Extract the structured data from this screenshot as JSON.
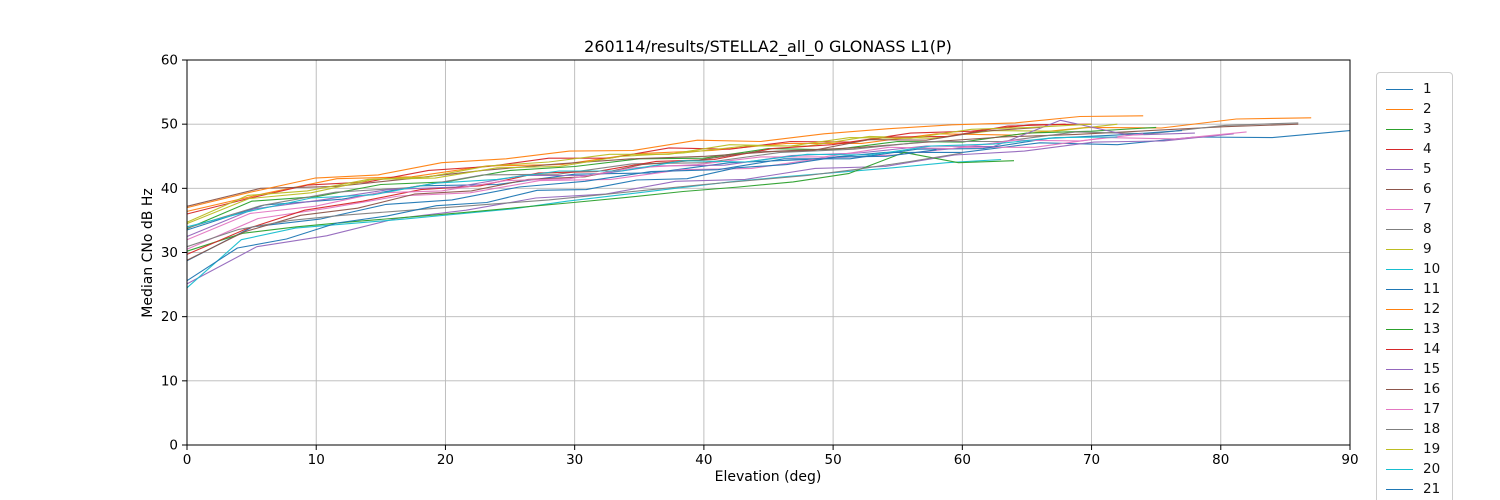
{
  "chart_data": {
    "type": "line",
    "title": "260114/results/STELLA2_all_0 GLONASS L1(P)",
    "xlabel": "Elevation (deg)",
    "ylabel": "Median CNo dB Hz",
    "xlim": [
      0,
      90
    ],
    "ylim": [
      0,
      60
    ],
    "x_ticks": [
      0,
      10,
      20,
      30,
      40,
      50,
      60,
      70,
      80,
      90
    ],
    "y_ticks": [
      0,
      10,
      20,
      30,
      40,
      50,
      60
    ],
    "grid": true,
    "legend_position": "outside-right",
    "legend_note": "entries 1-21, entry 21 clipped at figure bottom",
    "series": [
      {
        "name": "1",
        "color": "#1f77b4",
        "x": [
          0,
          6,
          12,
          18,
          24,
          30,
          36,
          42,
          48,
          54,
          60,
          66,
          72,
          78,
          84,
          90
        ],
        "y": [
          33.5,
          37.4,
          38.3,
          40.4,
          40.6,
          42.2,
          42.4,
          44.0,
          44.5,
          45.6,
          45.6,
          47.1,
          46.8,
          48.0,
          47.9,
          49.0
        ]
      },
      {
        "name": "2",
        "color": "#ff7f0e",
        "x": [
          0,
          5.8,
          11.6,
          17.4,
          23.2,
          29,
          34.8,
          40.6,
          46.4,
          52.2,
          58,
          63.8,
          69.6,
          75.4,
          81.2,
          87
        ],
        "y": [
          36.4,
          39.1,
          41.5,
          41.8,
          43.5,
          43.7,
          45.4,
          45.9,
          47.0,
          47.0,
          48.5,
          48.3,
          49.5,
          49.4,
          50.8,
          51.0
        ]
      },
      {
        "name": "3",
        "color": "#2ca02c",
        "x": [
          0,
          5,
          10,
          15,
          20,
          25,
          30,
          35,
          40,
          45,
          50,
          55,
          60,
          65,
          70,
          75
        ],
        "y": [
          33.7,
          38.0,
          38.7,
          40.6,
          41.0,
          42.8,
          43.4,
          44.6,
          44.7,
          46.2,
          46.0,
          47.3,
          47.2,
          48.6,
          48.9,
          49.5
        ]
      },
      {
        "name": "4",
        "color": "#d62728",
        "x": [
          0,
          4.7,
          9.3,
          14,
          18.7,
          23.3,
          28,
          32.7,
          37.3,
          42,
          46.7,
          51.3,
          56,
          60.7,
          65.3,
          70
        ],
        "y": [
          36.0,
          38.4,
          40.5,
          41.0,
          42.8,
          43.4,
          44.7,
          44.7,
          46.3,
          46.1,
          47.3,
          47.2,
          48.6,
          48.9,
          49.9,
          50.0
        ]
      },
      {
        "name": "5",
        "color": "#9467bd",
        "x": [
          0,
          5.4,
          10.8,
          16.2,
          21.6,
          27,
          32.4,
          37.8,
          43.2,
          48.6,
          54,
          59.4,
          64.8,
          70.2,
          75.6,
          81
        ],
        "y": [
          25.1,
          30.9,
          32.6,
          35.3,
          36.6,
          38.5,
          39.1,
          41.1,
          41.4,
          43.1,
          43.4,
          45.2,
          45.8,
          47.2,
          47.4,
          48.5
        ]
      },
      {
        "name": "6",
        "color": "#8c564b",
        "x": [
          0,
          5.7,
          11.5,
          17.2,
          22.9,
          28.7,
          34.4,
          40.1,
          45.9,
          51.6,
          57.3,
          63.1,
          68.8,
          74.5,
          80.3,
          86
        ],
        "y": [
          37.2,
          40.0,
          40.3,
          41.5,
          42.8,
          43.8,
          44.6,
          45.0,
          45.8,
          46.3,
          47.2,
          48.0,
          48.4,
          49.0,
          49.6,
          50.0
        ]
      },
      {
        "name": "7",
        "color": "#e377c2",
        "x": [
          0,
          5.5,
          10.9,
          16.4,
          21.9,
          27.3,
          32.8,
          38.3,
          43.7,
          49.2,
          54.7,
          60.1,
          65.6,
          71.1,
          76.5,
          82
        ],
        "y": [
          30.5,
          35.3,
          36.9,
          38.8,
          39.3,
          41.2,
          41.4,
          42.9,
          43.1,
          44.7,
          45.2,
          46.4,
          46.4,
          47.9,
          47.7,
          48.8
        ]
      },
      {
        "name": "8",
        "color": "#7f7f7f",
        "x": [
          0,
          5.7,
          11.5,
          17.2,
          22.9,
          28.7,
          34.4,
          40.1,
          45.9,
          51.6,
          57.3,
          63.1,
          68.8,
          74.5,
          80.3,
          86
        ],
        "y": [
          33.8,
          37.3,
          39.4,
          40.1,
          42.1,
          42.2,
          43.8,
          44.0,
          45.6,
          46.1,
          47.3,
          47.3,
          48.8,
          48.5,
          49.8,
          50.2
        ]
      },
      {
        "name": "9",
        "color": "#bcbd22",
        "x": [
          0,
          4.8,
          9.6,
          14.4,
          19.2,
          24,
          28.8,
          33.6,
          38.4,
          43.2,
          48,
          52.8,
          57.6,
          62.4,
          67.2,
          72
        ],
        "y": [
          34.5,
          38.4,
          39.3,
          41.4,
          41.6,
          43.2,
          43.4,
          45.0,
          45.5,
          46.6,
          46.6,
          48.1,
          47.8,
          49.0,
          48.9,
          50.0
        ]
      },
      {
        "name": "10",
        "color": "#17becf",
        "x": [
          0,
          4.2,
          8.4,
          12.6,
          16.8,
          21,
          25.2,
          29.4,
          33.6,
          37.8,
          42,
          46.2,
          50.4,
          54.6,
          58.8,
          63
        ],
        "y": [
          24.5,
          32.0,
          33.8,
          34.5,
          35.2,
          36.0,
          36.8,
          38.0,
          39.0,
          40.0,
          41.0,
          41.8,
          42.5,
          43.2,
          44.0,
          44.5
        ]
      },
      {
        "name": "11",
        "color": "#1f77b4",
        "x": [
          0,
          5.1,
          10.3,
          15.4,
          20.5,
          25.7,
          30.8,
          35.9,
          41.1,
          46.2,
          51.3,
          56.5,
          61.6,
          66.7,
          71.9,
          77
        ],
        "y": [
          28.7,
          34.0,
          35.2,
          37.5,
          38.2,
          40.2,
          41.1,
          42.6,
          42.9,
          44.6,
          44.6,
          46.1,
          46.2,
          47.8,
          48.3,
          49.0
        ]
      },
      {
        "name": "12",
        "color": "#ff7f0e",
        "x": [
          0,
          4.9,
          9.9,
          14.8,
          19.7,
          24.7,
          29.6,
          34.5,
          39.5,
          44.4,
          49.3,
          54.3,
          59.2,
          64.1,
          69.1,
          74
        ],
        "y": [
          37.0,
          39.4,
          41.6,
          42.1,
          44.0,
          44.6,
          45.8,
          45.9,
          47.5,
          47.3,
          48.5,
          49.3,
          49.9,
          50.2,
          51.2,
          51.3
        ]
      },
      {
        "name": "13",
        "color": "#2ca02c",
        "x": [
          0,
          4.3,
          8.5,
          12.8,
          17.1,
          21.3,
          25.6,
          29.9,
          34.1,
          38.4,
          42.7,
          46.9,
          51.2,
          55.5,
          59.7,
          64
        ],
        "y": [
          30.2,
          33.0,
          34.0,
          34.8,
          35.5,
          36.2,
          37.0,
          37.8,
          38.6,
          39.5,
          40.2,
          41.0,
          42.3,
          45.6,
          44.0,
          44.3
        ]
      },
      {
        "name": "14",
        "color": "#d62728",
        "x": [
          0,
          4.5,
          9.1,
          13.6,
          18.1,
          22.7,
          27.2,
          31.7,
          36.3,
          40.8,
          45.3,
          49.9,
          54.4,
          58.9,
          63.5,
          68
        ],
        "y": [
          29.7,
          33.6,
          36.6,
          38.0,
          39.8,
          40.4,
          42.4,
          42.6,
          44.2,
          44.5,
          46.2,
          46.8,
          48.0,
          48.1,
          49.7,
          50.0
        ]
      },
      {
        "name": "15",
        "color": "#9467bd",
        "x": [
          0,
          5.2,
          10.4,
          15.6,
          20.8,
          26,
          31.2,
          36.4,
          41.6,
          46.8,
          52,
          57.2,
          62.4,
          67.6,
          72.8,
          78
        ],
        "y": [
          32.5,
          36.8,
          38.2,
          39.8,
          40.2,
          42.0,
          42.0,
          43.5,
          43.6,
          45.1,
          45.5,
          46.6,
          46.5,
          50.6,
          48.3,
          48.6
        ]
      },
      {
        "name": "16",
        "color": "#8c564b",
        "x": [
          0,
          4.4,
          8.8,
          13.2,
          17.6,
          22,
          26.4,
          30.8,
          35.2,
          39.6,
          44,
          48.4,
          52.8,
          57.2,
          61.6,
          66
        ],
        "y": [
          28.8,
          33.2,
          35.8,
          36.9,
          39.1,
          39.6,
          41.4,
          41.8,
          43.7,
          44.4,
          45.7,
          45.9,
          47.6,
          47.5,
          48.9,
          49.5
        ]
      },
      {
        "name": "17",
        "color": "#e377c2",
        "x": [
          0,
          4.9,
          9.9,
          14.8,
          19.7,
          24.7,
          29.6,
          34.5,
          39.5,
          44.4,
          49.3,
          54.3,
          59.2,
          64.1,
          69.1,
          74
        ],
        "y": [
          32.0,
          36.1,
          37.2,
          39.3,
          39.6,
          41.2,
          41.5,
          43.2,
          43.7,
          44.9,
          44.9,
          46.4,
          46.2,
          47.5,
          47.4,
          48.5
        ]
      },
      {
        "name": "18",
        "color": "#7f7f7f",
        "x": [
          0,
          4,
          8,
          12,
          16,
          20,
          24,
          28,
          32,
          36,
          40,
          44,
          48,
          52,
          56,
          60
        ],
        "y": [
          30.9,
          33.6,
          35.0,
          35.8,
          36.4,
          37.0,
          37.6,
          38.2,
          39.0,
          39.8,
          40.6,
          41.3,
          42.0,
          43.0,
          44.2,
          45.5
        ]
      },
      {
        "name": "19",
        "color": "#bcbd22",
        "x": [
          0,
          4.7,
          9.3,
          14,
          18.7,
          23.3,
          28,
          32.7,
          37.3,
          42,
          46.7,
          51.3,
          56,
          60.7,
          65.3,
          70
        ],
        "y": [
          34.7,
          38.9,
          39.6,
          41.4,
          41.8,
          43.5,
          44.1,
          45.3,
          45.3,
          46.8,
          46.6,
          47.9,
          47.8,
          49.2,
          49.5,
          50.0
        ]
      },
      {
        "name": "20",
        "color": "#17becf",
        "x": [
          0,
          4.8,
          9.6,
          14.4,
          19.2,
          24,
          28.8,
          33.6,
          38.4,
          43.2,
          48,
          52.8,
          57.6,
          62.4,
          67.2,
          72
        ],
        "y": [
          34.0,
          36.4,
          38.5,
          39.0,
          40.8,
          41.4,
          42.7,
          42.7,
          44.3,
          44.1,
          45.3,
          45.2,
          46.6,
          46.9,
          47.9,
          48.0
        ]
      },
      {
        "name": "21",
        "color": "#1f77b4",
        "x": [
          0,
          3.9,
          7.7,
          11.6,
          15.5,
          19.3,
          23.2,
          27.1,
          30.9,
          34.8,
          38.7,
          42.5,
          46.4,
          50.3,
          54.1,
          58
        ],
        "y": [
          25.6,
          30.7,
          32.1,
          34.6,
          35.7,
          37.3,
          37.8,
          39.7,
          39.8,
          41.3,
          41.5,
          43.2,
          43.7,
          44.9,
          45.0,
          46.0
        ]
      }
    ],
    "style": {
      "grid_color": "#b8b8b8",
      "spine_color": "#000000",
      "tick_label_color": "#000000",
      "line_width": 1.1
    }
  }
}
